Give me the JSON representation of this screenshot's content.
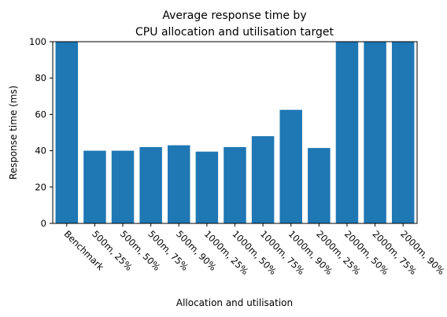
{
  "chart_data": {
    "type": "bar",
    "title_line1": "Average response time by",
    "title_line2": "CPU allocation and utilisation target",
    "xlabel": "Allocation and utilisation",
    "ylabel": "Response time (ms)",
    "ylim": [
      0,
      100
    ],
    "yticks": [
      0,
      20,
      40,
      60,
      80,
      100
    ],
    "grid": false,
    "bar_color": "#1f77b4",
    "categories": [
      "Benchmark",
      "500m, 25%",
      "500m, 50%",
      "500m, 75%",
      "500m, 90%",
      "1000m, 25%",
      "1000m, 50%",
      "1000m, 75%",
      "1000m, 90%",
      "2000m, 25%",
      "2000m, 50%",
      "2000m, 75%",
      "2000m, 90%"
    ],
    "values": [
      100,
      40,
      40,
      42,
      43,
      39.5,
      42,
      48,
      62.5,
      41.5,
      100,
      100,
      100
    ]
  }
}
